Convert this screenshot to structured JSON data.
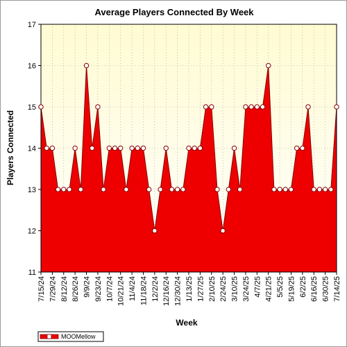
{
  "chart_data": {
    "type": "area",
    "title": "Average Players Connected By Week",
    "xlabel": "Week",
    "ylabel": "Players Connected",
    "ylim": [
      11,
      17
    ],
    "yticks": [
      11,
      12,
      13,
      14,
      15,
      16,
      17
    ],
    "grid": true,
    "legend_position": "bottom-left",
    "plot_background": "#fffde6",
    "fill_color": "#ee0000",
    "line_color": "#880000",
    "x": [
      "7/15/24",
      "7/22/24",
      "7/29/24",
      "8/5/24",
      "8/12/24",
      "8/19/24",
      "8/26/24",
      "9/2/24",
      "9/9/24",
      "9/16/24",
      "9/23/24",
      "9/30/24",
      "10/7/24",
      "10/14/24",
      "10/21/24",
      "10/28/24",
      "11/4/24",
      "11/11/24",
      "11/18/24",
      "11/25/24",
      "12/2/24",
      "12/9/24",
      "12/16/24",
      "12/23/24",
      "12/30/24",
      "1/6/25",
      "1/13/25",
      "1/20/25",
      "1/27/25",
      "2/3/25",
      "2/10/25",
      "2/17/25",
      "2/24/25",
      "3/3/25",
      "3/10/25",
      "3/17/25",
      "3/24/25",
      "3/31/25",
      "4/7/25",
      "4/14/25",
      "4/21/25",
      "4/28/25",
      "5/5/25",
      "5/12/25",
      "5/19/25",
      "5/26/25",
      "6/2/25",
      "6/9/25",
      "6/16/25",
      "6/23/25",
      "6/30/25",
      "7/7/25",
      "7/14/25"
    ],
    "x_tick_labels": [
      "7/15/24",
      "7/29/24",
      "8/12/24",
      "8/26/24",
      "9/9/24",
      "9/23/24",
      "10/7/24",
      "10/21/24",
      "11/4/24",
      "11/18/24",
      "12/2/24",
      "12/16/24",
      "12/30/24",
      "1/13/25",
      "1/27/25",
      "2/10/25",
      "2/24/25",
      "3/10/25",
      "3/24/25",
      "4/7/25",
      "4/21/25",
      "5/5/25",
      "5/19/25",
      "6/2/25",
      "6/16/25",
      "6/30/25",
      "7/14/25"
    ],
    "series": [
      {
        "name": "MOOMellow",
        "values": [
          15,
          14,
          14,
          13,
          13,
          13,
          14,
          13,
          16,
          14,
          15,
          13,
          14,
          14,
          14,
          13,
          14,
          14,
          14,
          13,
          12,
          13,
          14,
          13,
          13,
          13,
          14,
          14,
          14,
          15,
          15,
          13,
          12,
          13,
          14,
          13,
          15,
          15,
          15,
          15,
          16,
          13,
          13,
          13,
          13,
          14,
          14,
          15,
          13,
          13,
          13,
          13,
          15
        ]
      }
    ]
  }
}
